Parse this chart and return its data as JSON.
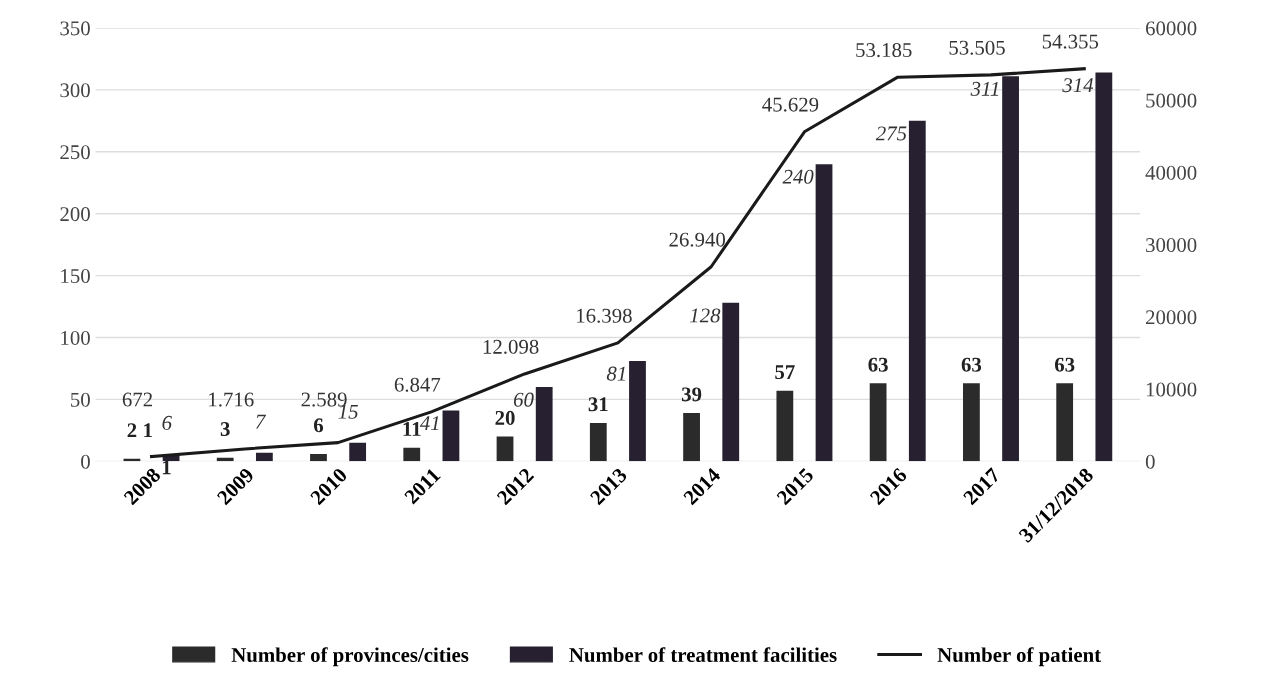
{
  "chart_data": {
    "type": "bar",
    "categories": [
      "2008",
      "2009",
      "2010",
      "2011",
      "2012",
      "2013",
      "2014",
      "2015",
      "2016",
      "2017",
      "31/12/2018"
    ],
    "series": [
      {
        "name": "Number of provinces/cities",
        "color": "#2b2b2b",
        "values": [
          2,
          3,
          6,
          11,
          20,
          31,
          39,
          57,
          63,
          63,
          63
        ],
        "value_labels": [
          "2",
          "3",
          "6",
          "11",
          "20",
          "31",
          "39",
          "57",
          "63",
          "63",
          "63"
        ]
      },
      {
        "name": "Number of treatment facilities",
        "color": "#262030",
        "values": [
          6,
          7,
          15,
          41,
          60,
          81,
          128,
          240,
          275,
          311,
          314
        ],
        "value_labels": [
          "6",
          "7",
          "15",
          "41",
          "60",
          "81",
          "128",
          "240",
          "275",
          "311",
          "314"
        ]
      },
      {
        "name": "Number of patient",
        "type": "line",
        "axis": "y2",
        "color": "#1a1a1a",
        "values": [
          672,
          1716,
          2589,
          6847,
          12098,
          16398,
          26940,
          45629,
          53185,
          53505,
          54355
        ],
        "value_labels": [
          "672",
          "1.716",
          "2.589",
          "6.847",
          "12.098",
          "16.398",
          "26.940",
          "45.629",
          "53.185",
          "53.505",
          "54.355"
        ]
      }
    ],
    "ylim": [
      0,
      350
    ],
    "yticks": [
      0,
      50,
      100,
      150,
      200,
      250,
      300,
      350
    ],
    "y2lim": [
      0,
      60000
    ],
    "y2ticks": [
      0,
      10000,
      20000,
      30000,
      40000,
      50000,
      60000
    ],
    "annotations": [
      "1",
      "1"
    ],
    "grid": "y",
    "legend": "bottom",
    "marker": "none",
    "line_style": "solid"
  }
}
